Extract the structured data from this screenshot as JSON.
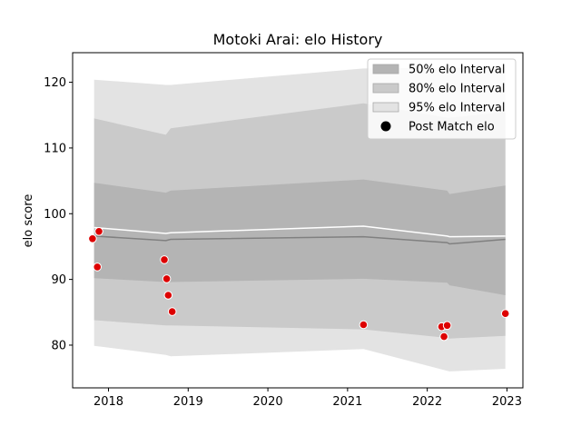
{
  "chart_data": {
    "type": "line",
    "title": "Motoki Arai: elo History",
    "xlabel": "",
    "ylabel": "elo score",
    "xlim": [
      2017.55,
      2023.2
    ],
    "ylim": [
      73.5,
      124.5
    ],
    "x_ticks": [
      2018,
      2019,
      2020,
      2021,
      2022,
      2023
    ],
    "x_tick_labels": [
      "2018",
      "2019",
      "2020",
      "2021",
      "2022",
      "2023"
    ],
    "y_ticks": [
      80,
      90,
      100,
      110,
      120
    ],
    "y_tick_labels": [
      "80",
      "90",
      "100",
      "110",
      "120"
    ],
    "grid": false,
    "legend_position": "top-right",
    "bands": [
      {
        "name": "95% elo Interval",
        "color": "#e3e3e3",
        "x": [
          2017.82,
          2018.72,
          2018.78,
          2021.2,
          2022.25,
          2022.28,
          2022.98
        ],
        "upper": [
          120.4,
          119.6,
          119.6,
          122.1,
          122.2,
          122.2,
          122.2
        ],
        "lower": [
          79.9,
          78.5,
          78.3,
          79.4,
          76.1,
          76.0,
          76.4
        ]
      },
      {
        "name": "80% elo Interval",
        "color": "#cacaca",
        "x": [
          2017.82,
          2018.72,
          2018.78,
          2021.2,
          2022.25,
          2022.28,
          2022.98
        ],
        "upper": [
          114.5,
          112.0,
          113.0,
          116.8,
          114.6,
          114.6,
          115.5
        ],
        "lower": [
          83.8,
          83.0,
          83.0,
          82.4,
          81.1,
          81.0,
          81.4
        ]
      },
      {
        "name": "50% elo Interval",
        "color": "#b4b4b4",
        "x": [
          2017.82,
          2018.72,
          2018.78,
          2021.2,
          2022.25,
          2022.28,
          2022.98
        ],
        "upper": [
          104.7,
          103.2,
          103.5,
          105.2,
          103.5,
          103.0,
          104.3
        ],
        "lower": [
          90.2,
          89.6,
          89.6,
          90.1,
          89.5,
          89.1,
          87.6
        ]
      }
    ],
    "mean_line": {
      "x": [
        2017.82,
        2018.72,
        2018.78,
        2021.2,
        2022.25,
        2022.28,
        2022.98
      ],
      "y": [
        96.6,
        95.9,
        96.1,
        96.5,
        95.6,
        95.4,
        96.1
      ],
      "color": "#808080"
    },
    "upper_line": {
      "x": [
        2017.82,
        2018.72,
        2018.78,
        2021.2,
        2022.25,
        2022.28,
        2022.98
      ],
      "y": [
        97.9,
        97.0,
        97.1,
        98.1,
        96.6,
        96.5,
        96.6
      ],
      "color": "#ffffff"
    },
    "post_match": {
      "name": "Post Match elo",
      "color": "#dd0000",
      "x": [
        2017.8,
        2017.86,
        2017.88,
        2018.7,
        2018.73,
        2018.75,
        2018.8,
        2021.2,
        2022.18,
        2022.21,
        2022.25,
        2022.98
      ],
      "y": [
        96.2,
        91.9,
        97.3,
        93.0,
        90.1,
        87.6,
        85.1,
        83.1,
        82.8,
        81.3,
        83.0,
        84.8
      ]
    },
    "legend": [
      {
        "label": "50% elo Interval",
        "kind": "patch",
        "color": "#b4b4b4"
      },
      {
        "label": "80% elo Interval",
        "kind": "patch",
        "color": "#cacaca"
      },
      {
        "label": "95% elo Interval",
        "kind": "patch",
        "color": "#e3e3e3"
      },
      {
        "label": "Post Match elo",
        "kind": "dot",
        "color": "#000000"
      }
    ]
  }
}
